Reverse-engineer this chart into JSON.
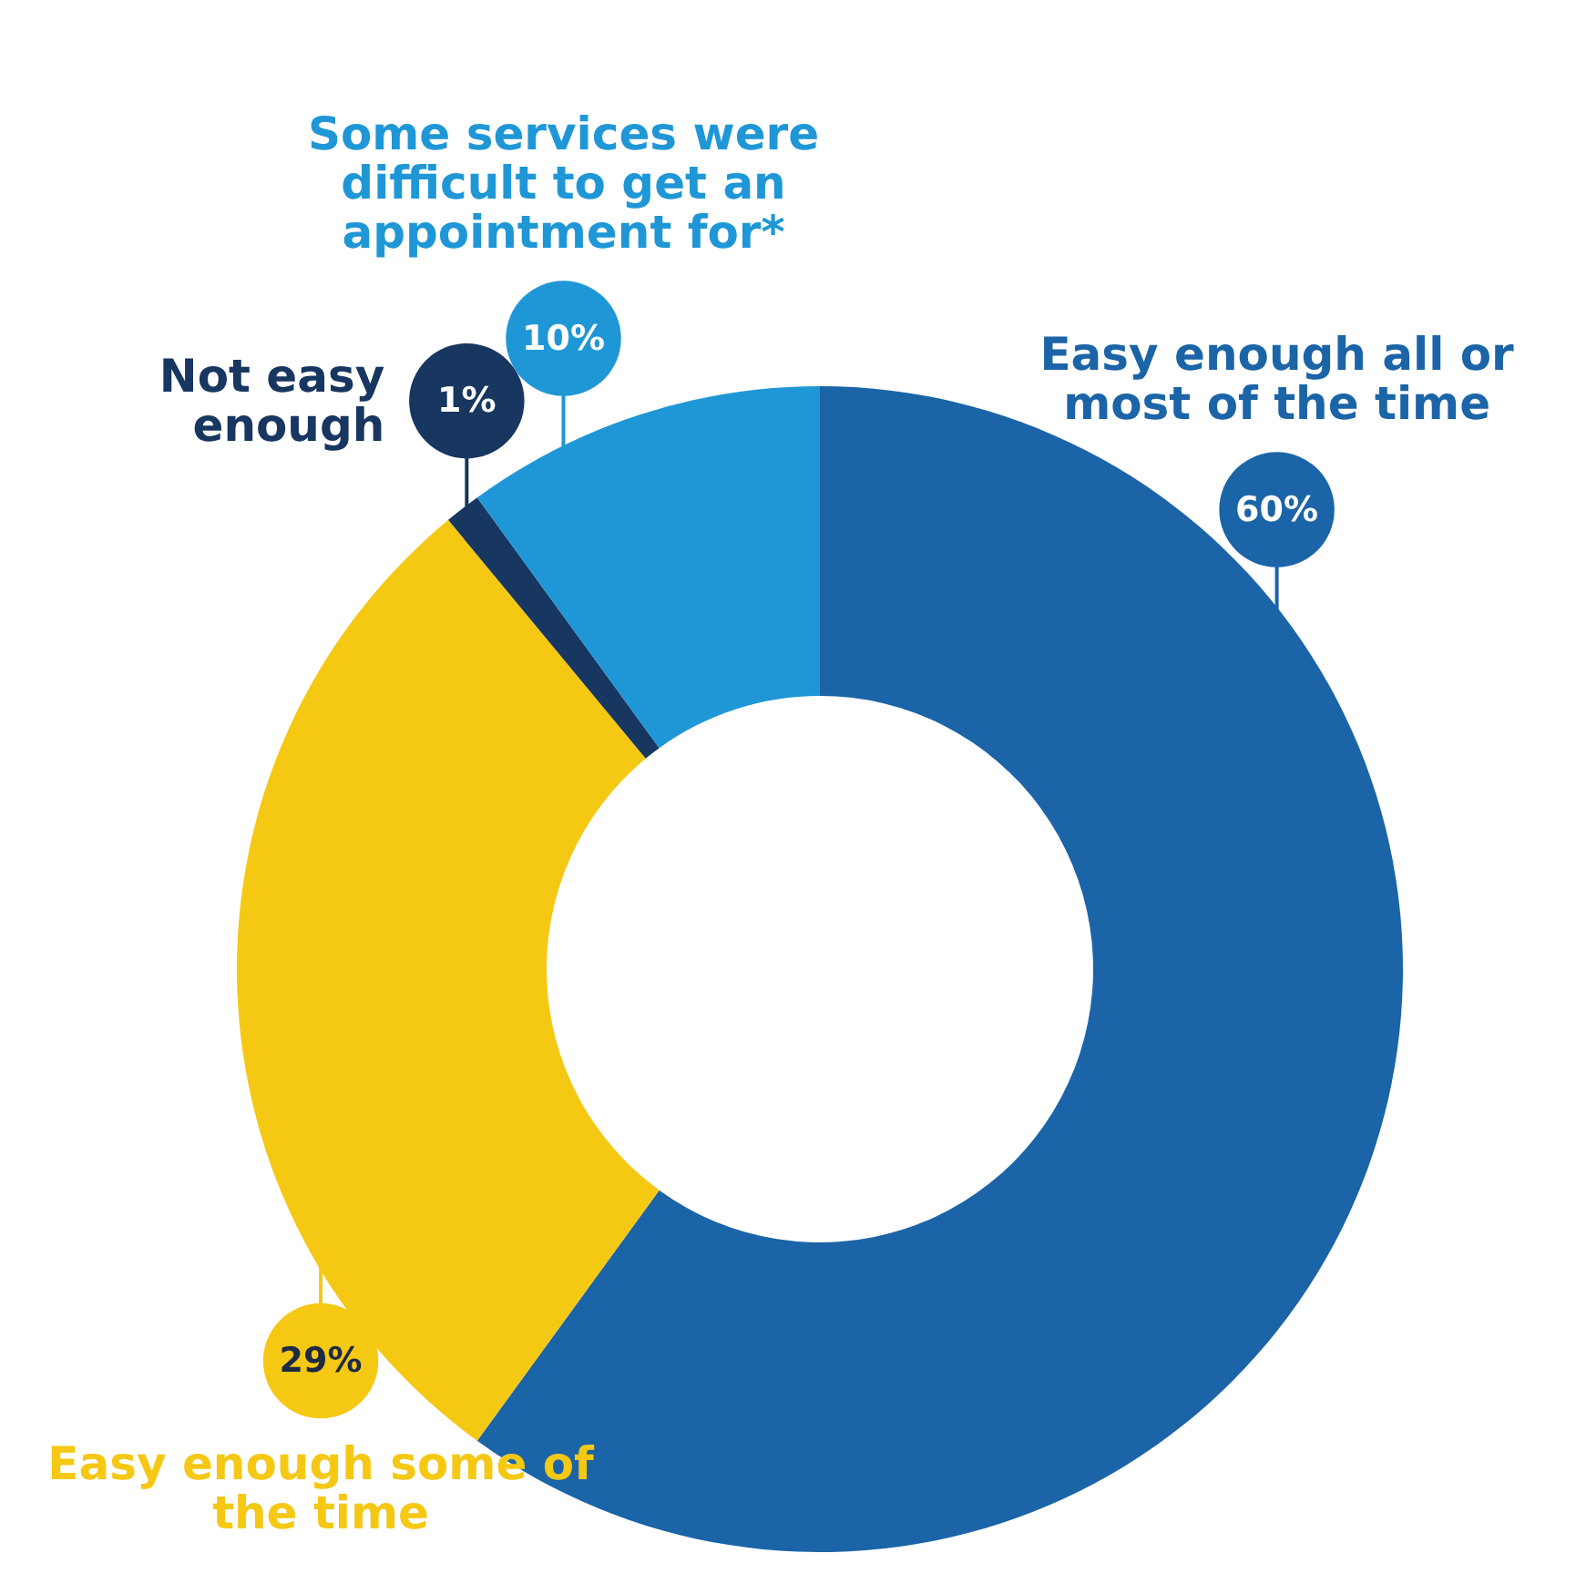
{
  "chart_data": {
    "type": "donut",
    "categories": [
      "Easy enough all or most of the time",
      "Easy enough some of the time",
      "Not easy enough",
      "Some services were difficult to get an appointment for*"
    ],
    "values": [
      60,
      29,
      1,
      10
    ],
    "colors": [
      "#1b64a7",
      "#f5c814",
      "#173660",
      "#1f97d6"
    ],
    "value_labels": [
      "60%",
      "29%",
      "1%",
      "10%"
    ]
  }
}
